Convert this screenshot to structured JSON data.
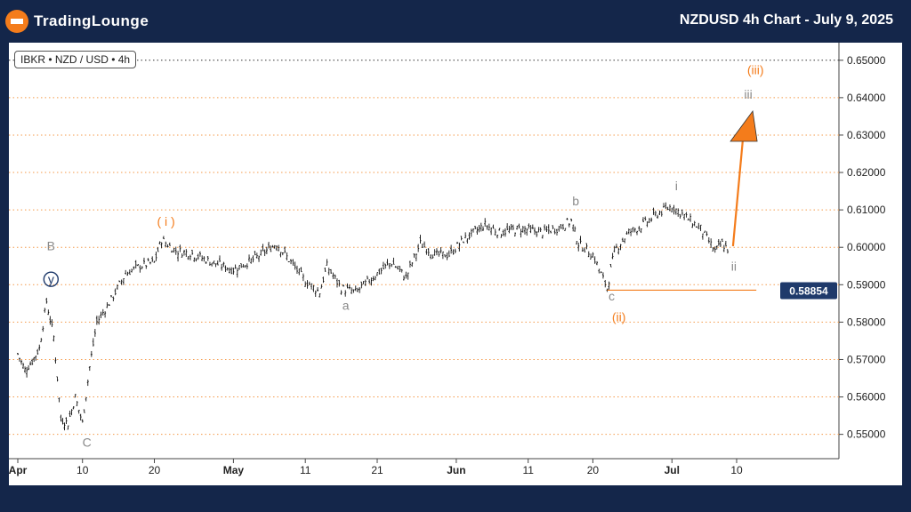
{
  "header": {
    "logo_text": "TradingLounge",
    "title": "NZDUSD 4h Chart - July 9, 2025"
  },
  "symbol_label": "IBKR • NZD / USD • 4h",
  "colors": {
    "background": "#14264a",
    "accent": "#f47c1b",
    "gray_label": "#8a8a8a",
    "price_tag": "#1f3a6b"
  },
  "chart_data": {
    "type": "candlestick",
    "yaxis": {
      "ticks": [
        "0.65000",
        "0.64000",
        "0.63000",
        "0.62000",
        "0.61000",
        "0.60000",
        "0.59000",
        "0.58000",
        "0.57000",
        "0.56000",
        "0.55000"
      ],
      "range": [
        0.5435,
        0.6547
      ]
    },
    "xaxis": {
      "ticks": [
        "Apr",
        "10",
        "20",
        "May",
        "11",
        "21",
        "Jun",
        "11",
        "20",
        "Jul",
        "10"
      ]
    },
    "grid": "dotted-orange-horizontal",
    "price_tag": "0.58854",
    "series": [
      {
        "d": "Apr 1",
        "v": 0.5715
      },
      {
        "d": "Apr 2",
        "v": 0.5672
      },
      {
        "d": "Apr 3",
        "v": 0.5695
      },
      {
        "d": "Apr 4",
        "v": 0.573
      },
      {
        "d": "Apr 5",
        "v": 0.5855
      },
      {
        "d": "Apr 6",
        "v": 0.576
      },
      {
        "d": "Apr 7",
        "v": 0.554
      },
      {
        "d": "Apr 8",
        "v": 0.553
      },
      {
        "d": "Apr 9",
        "v": 0.56
      },
      {
        "d": "Apr 10",
        "v": 0.553
      },
      {
        "d": "Apr 11",
        "v": 0.568
      },
      {
        "d": "Apr 12",
        "v": 0.58
      },
      {
        "d": "Apr 14",
        "v": 0.586
      },
      {
        "d": "Apr 16",
        "v": 0.593
      },
      {
        "d": "Apr 18",
        "v": 0.595
      },
      {
        "d": "Apr 20",
        "v": 0.596
      },
      {
        "d": "Apr 21",
        "v": 0.602
      },
      {
        "d": "Apr 23",
        "v": 0.599
      },
      {
        "d": "Apr 25",
        "v": 0.5985
      },
      {
        "d": "Apr 28",
        "v": 0.596
      },
      {
        "d": "May 1",
        "v": 0.594
      },
      {
        "d": "May 4",
        "v": 0.597
      },
      {
        "d": "May 7",
        "v": 0.601
      },
      {
        "d": "May 9",
        "v": 0.596
      },
      {
        "d": "May 11",
        "v": 0.591
      },
      {
        "d": "May 13",
        "v": 0.588
      },
      {
        "d": "May 14",
        "v": 0.595
      },
      {
        "d": "May 16",
        "v": 0.589
      },
      {
        "d": "May 18",
        "v": 0.588
      },
      {
        "d": "May 21",
        "v": 0.593
      },
      {
        "d": "May 23",
        "v": 0.596
      },
      {
        "d": "May 25",
        "v": 0.592
      },
      {
        "d": "May 27",
        "v": 0.601
      },
      {
        "d": "May 29",
        "v": 0.598
      },
      {
        "d": "May 31",
        "v": 0.598
      },
      {
        "d": "Jun 2",
        "v": 0.602
      },
      {
        "d": "Jun 5",
        "v": 0.606
      },
      {
        "d": "Jun 7",
        "v": 0.604
      },
      {
        "d": "Jun 10",
        "v": 0.605
      },
      {
        "d": "Jun 13",
        "v": 0.604
      },
      {
        "d": "Jun 15",
        "v": 0.605
      },
      {
        "d": "Jun 17",
        "v": 0.607
      },
      {
        "d": "Jun 18",
        "v": 0.601
      },
      {
        "d": "Jun 20",
        "v": 0.598
      },
      {
        "d": "Jun 22",
        "v": 0.589
      },
      {
        "d": "Jun 23",
        "v": 0.599
      },
      {
        "d": "Jun 25",
        "v": 0.604
      },
      {
        "d": "Jun 27",
        "v": 0.606
      },
      {
        "d": "Jun 29",
        "v": 0.609
      },
      {
        "d": "Jul 1",
        "v": 0.611
      },
      {
        "d": "Jul 3",
        "v": 0.608
      },
      {
        "d": "Jul 5",
        "v": 0.605
      },
      {
        "d": "Jul 7",
        "v": 0.599
      },
      {
        "d": "Jul 8",
        "v": 0.601
      },
      {
        "d": "Jul 9",
        "v": 0.599
      }
    ],
    "wave_labels": [
      {
        "text": "B",
        "color": "#8a8a8a",
        "d": "Apr 5",
        "v": 0.5995
      },
      {
        "text": "y",
        "color": "#1f3a6b",
        "circled": true,
        "d": "Apr 5",
        "v": 0.5905
      },
      {
        "text": "C",
        "color": "#8a8a8a",
        "d": "Apr 10",
        "v": 0.547
      },
      {
        "text": "( i )",
        "color": "#f47c1b",
        "d": "Apr 21",
        "v": 0.606
      },
      {
        "text": "a",
        "color": "#8a8a8a",
        "d": "May 16",
        "v": 0.5835
      },
      {
        "text": "b",
        "color": "#8a8a8a",
        "d": "Jun 17",
        "v": 0.6115
      },
      {
        "text": "c",
        "color": "#8a8a8a",
        "d": "Jun 22",
        "v": 0.586
      },
      {
        "text": "(ii)",
        "color": "#f47c1b",
        "d": "Jun 23",
        "v": 0.5805
      },
      {
        "text": "i",
        "color": "#8a8a8a",
        "d": "Jul 1",
        "v": 0.6155
      },
      {
        "text": "ii",
        "color": "#8a8a8a",
        "d": "Jul 9",
        "v": 0.594
      },
      {
        "text": "iii",
        "color": "#8a8a8a",
        "d": "Jul 11",
        "v": 0.64
      },
      {
        "text": "(iii)",
        "color": "#f47c1b",
        "d": "Jul 12",
        "v": 0.6465
      }
    ],
    "support_line": {
      "from": "Jun 22",
      "to": "Jul 12",
      "v": 0.58854
    },
    "projection": {
      "from": {
        "d": "Jul 9",
        "v": 0.6003
      },
      "to": {
        "d": "Jul 11",
        "v": 0.6345
      }
    }
  }
}
